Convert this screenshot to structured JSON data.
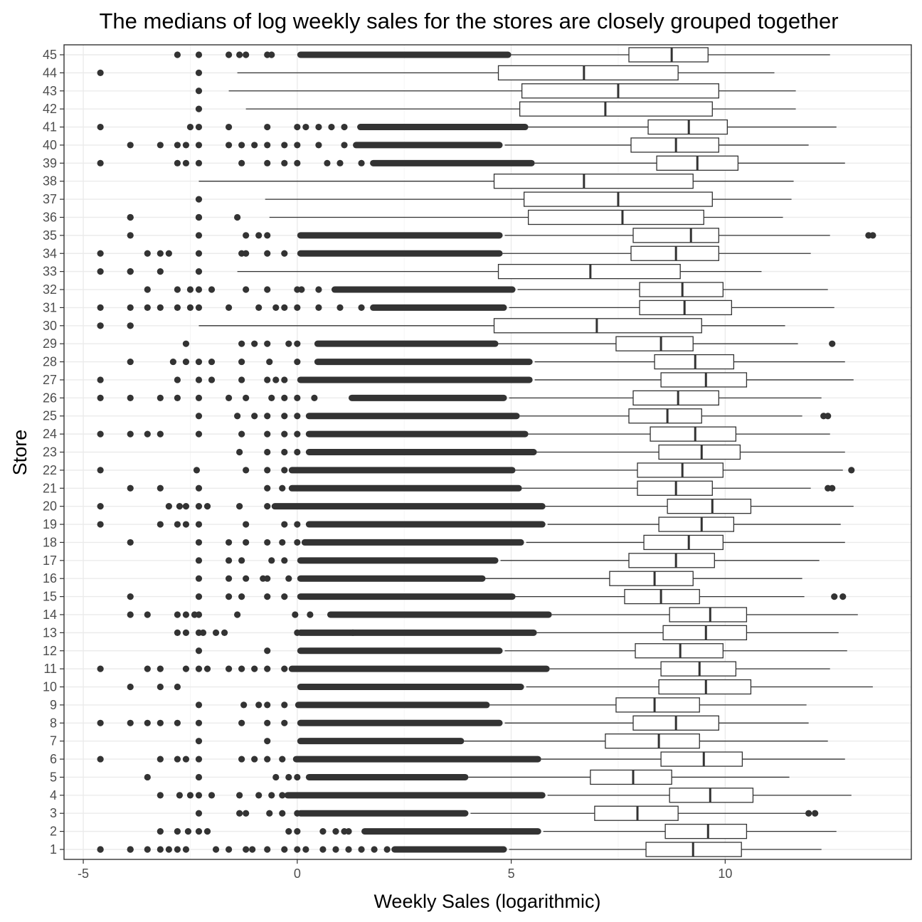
{
  "chart_data": {
    "type": "boxplot",
    "orientation": "horizontal",
    "title": "The medians of log weekly sales for the stores are closely grouped together",
    "xlabel": "Weekly Sales (logarithmic)",
    "ylabel": "Store",
    "xlim": [
      -5.45,
      14.35
    ],
    "xticks": [
      -5,
      0,
      5,
      10
    ],
    "xtick_labels": [
      "-5",
      "0",
      "5",
      "10"
    ],
    "grid": true,
    "colors": {
      "box_fill": "#ffffff",
      "box_stroke": "#333333",
      "outlier": "#333333",
      "grid": "#ebebeb",
      "tick_text": "#4d4d4d"
    },
    "stores": [
      {
        "store": "1",
        "lower": 4.95,
        "q1": 8.15,
        "median": 9.25,
        "q3": 10.38,
        "upper": 12.25,
        "outliers": [
          -4.6,
          -4.6,
          -3.9,
          -3.9,
          -3.5,
          -3.2,
          -3.0,
          -2.8,
          -2.6,
          -1.9,
          -1.6,
          -1.2,
          -1.05,
          -0.7,
          -0.3,
          0.0,
          0.2,
          0.6,
          0.9,
          1.2,
          1.5,
          1.8,
          2.1
        ],
        "outlier_band": [
          2.2,
          4.9
        ]
      },
      {
        "store": "2",
        "lower": 5.75,
        "q1": 8.6,
        "median": 9.6,
        "q3": 10.5,
        "upper": 12.6,
        "outliers": [
          -3.2,
          -2.8,
          -2.55,
          -2.3,
          -2.1,
          -0.2,
          0.0,
          0.6,
          0.9,
          1.1,
          1.2
        ],
        "outlier_band": [
          1.5,
          5.7
        ]
      },
      {
        "store": "3",
        "lower": 4.05,
        "q1": 6.95,
        "median": 7.95,
        "q3": 8.9,
        "upper": 11.9,
        "outliers": [
          -2.3,
          -1.35,
          -1.2,
          -0.65,
          -0.35,
          0.0,
          11.95,
          12.1
        ],
        "outlier_band": [
          0.0,
          4.0
        ]
      },
      {
        "store": "4",
        "lower": 5.85,
        "q1": 8.7,
        "median": 9.65,
        "q3": 10.65,
        "upper": 12.95,
        "outliers": [
          -3.2,
          -2.75,
          -2.5,
          -2.3,
          -2.0,
          -1.35,
          -0.9,
          -0.6,
          -0.35
        ],
        "outlier_band": [
          -0.3,
          5.8
        ]
      },
      {
        "store": "5",
        "lower": 4.0,
        "q1": 6.85,
        "median": 7.85,
        "q3": 8.75,
        "upper": 11.5,
        "outliers": [
          -3.5,
          -2.3,
          -0.5,
          -0.2,
          0.0
        ],
        "outlier_band": [
          0.2,
          4.0
        ]
      },
      {
        "store": "6",
        "lower": 5.7,
        "q1": 8.5,
        "median": 9.5,
        "q3": 10.4,
        "upper": 12.8,
        "outliers": [
          -4.6,
          -3.2,
          -2.8,
          -2.6,
          -2.3,
          -1.3,
          -1.0,
          -0.7,
          -0.35
        ],
        "outlier_band": [
          -0.1,
          5.7
        ]
      },
      {
        "store": "7",
        "lower": 3.9,
        "q1": 7.2,
        "median": 8.45,
        "q3": 9.4,
        "upper": 12.4,
        "outliers": [
          -2.3,
          -0.7
        ],
        "outlier_band": [
          0.0,
          3.9
        ]
      },
      {
        "store": "8",
        "lower": 4.85,
        "q1": 7.85,
        "median": 8.85,
        "q3": 9.85,
        "upper": 11.95,
        "outliers": [
          -4.6,
          -3.9,
          -3.5,
          -3.2,
          -2.8,
          -2.3,
          -1.3,
          -0.7,
          -0.3
        ],
        "outlier_band": [
          0.0,
          4.8
        ]
      },
      {
        "store": "9",
        "lower": 4.5,
        "q1": 7.45,
        "median": 8.35,
        "q3": 9.4,
        "upper": 11.9,
        "outliers": [
          -2.3,
          -1.25,
          -0.9,
          -0.7,
          -0.3
        ],
        "outlier_band": [
          -0.05,
          4.5
        ]
      },
      {
        "store": "10",
        "lower": 5.35,
        "q1": 8.45,
        "median": 9.55,
        "q3": 10.6,
        "upper": 13.45,
        "outliers": [
          -3.9,
          -3.2,
          -2.8
        ],
        "outlier_band": [
          0.0,
          5.3
        ]
      },
      {
        "store": "11",
        "lower": 5.9,
        "q1": 8.5,
        "median": 9.4,
        "q3": 10.25,
        "upper": 12.45,
        "outliers": [
          -4.6,
          -3.5,
          -3.2,
          -2.6,
          -2.3,
          -2.1,
          -1.6,
          -1.3,
          -1.0,
          -0.7,
          -0.3
        ],
        "outlier_band": [
          -0.2,
          5.9
        ]
      },
      {
        "store": "12",
        "lower": 4.85,
        "q1": 7.9,
        "median": 8.95,
        "q3": 9.95,
        "upper": 12.85,
        "outliers": [
          -2.3,
          -0.7
        ],
        "outlier_band": [
          0.0,
          4.8
        ]
      },
      {
        "store": "13",
        "lower": 5.6,
        "q1": 8.55,
        "median": 9.55,
        "q3": 10.5,
        "upper": 12.65,
        "outliers": [
          -2.8,
          -2.6,
          -2.3,
          -2.2,
          -1.9,
          -1.7,
          0.0,
          1.3
        ],
        "outlier_band": [
          0.0,
          5.6
        ]
      },
      {
        "store": "14",
        "lower": 5.95,
        "q1": 8.7,
        "median": 9.65,
        "q3": 10.5,
        "upper": 13.1,
        "outliers": [
          -3.9,
          -3.5,
          -2.8,
          -2.6,
          -2.4,
          -2.3,
          -1.4,
          -0.05,
          0.3
        ],
        "outlier_band": [
          0.7,
          5.95
        ]
      },
      {
        "store": "15",
        "lower": 5.1,
        "q1": 7.65,
        "median": 8.5,
        "q3": 9.4,
        "upper": 11.85,
        "outliers": [
          -3.9,
          -2.3,
          -1.6,
          -1.3,
          -0.7,
          -0.3,
          12.55,
          12.75
        ],
        "outlier_band": [
          0.0,
          5.1
        ]
      },
      {
        "store": "16",
        "lower": 4.4,
        "q1": 7.3,
        "median": 8.35,
        "q3": 9.25,
        "upper": 11.8,
        "outliers": [
          -2.3,
          -1.6,
          -1.2,
          -0.8,
          -0.7,
          -0.2
        ],
        "outlier_band": [
          0.0,
          4.4
        ]
      },
      {
        "store": "17",
        "lower": 4.75,
        "q1": 7.75,
        "median": 8.85,
        "q3": 9.75,
        "upper": 12.2,
        "outliers": [
          -2.3,
          -1.6,
          -1.3,
          -0.6,
          -0.3
        ],
        "outlier_band": [
          0.0,
          4.7
        ]
      },
      {
        "store": "18",
        "lower": 5.35,
        "q1": 8.1,
        "median": 9.15,
        "q3": 9.95,
        "upper": 12.8,
        "outliers": [
          -3.9,
          -2.3,
          -1.6,
          -1.2,
          -0.7,
          -0.35,
          0.0
        ],
        "outlier_band": [
          0.1,
          5.3
        ]
      },
      {
        "store": "19",
        "lower": 5.85,
        "q1": 8.45,
        "median": 9.45,
        "q3": 10.2,
        "upper": 12.7,
        "outliers": [
          -4.6,
          -3.2,
          -2.8,
          -2.6,
          -2.3,
          -1.2,
          -0.3,
          0.0
        ],
        "outlier_band": [
          0.2,
          5.8
        ]
      },
      {
        "store": "20",
        "lower": 5.8,
        "q1": 8.65,
        "median": 9.7,
        "q3": 10.6,
        "upper": 13.0,
        "outliers": [
          -4.6,
          -3.0,
          -2.75,
          -2.6,
          -2.3,
          -2.1,
          -1.35,
          -0.7
        ],
        "outlier_band": [
          -0.6,
          5.8
        ]
      },
      {
        "store": "21",
        "lower": 5.25,
        "q1": 7.95,
        "median": 8.85,
        "q3": 9.7,
        "upper": 12.0,
        "outliers": [
          -3.9,
          -3.2,
          -2.3,
          -0.7,
          -0.35,
          12.4,
          12.5
        ],
        "outlier_band": [
          -0.2,
          5.25
        ]
      },
      {
        "store": "22",
        "lower": 5.1,
        "q1": 7.95,
        "median": 9.0,
        "q3": 9.95,
        "upper": 12.75,
        "outliers": [
          -4.6,
          -2.35,
          -1.2,
          -0.7,
          -0.3,
          12.95
        ],
        "outlier_band": [
          -0.2,
          5.1
        ]
      },
      {
        "store": "23",
        "lower": 5.6,
        "q1": 8.45,
        "median": 9.45,
        "q3": 10.35,
        "upper": 12.8,
        "outliers": [
          -1.35,
          -0.7,
          -0.3,
          0.0
        ],
        "outlier_band": [
          0.2,
          5.6
        ]
      },
      {
        "store": "24",
        "lower": 5.4,
        "q1": 8.25,
        "median": 9.3,
        "q3": 10.25,
        "upper": 12.45,
        "outliers": [
          -4.6,
          -3.9,
          -3.5,
          -3.2,
          -2.3,
          -1.3,
          -0.7,
          -0.3,
          0.0
        ],
        "outlier_band": [
          0.2,
          5.4
        ]
      },
      {
        "store": "25",
        "lower": 5.2,
        "q1": 7.75,
        "median": 8.65,
        "q3": 9.45,
        "upper": 11.8,
        "outliers": [
          -2.3,
          -1.4,
          -1.0,
          -0.7,
          -0.3,
          0.0,
          12.3,
          12.4
        ],
        "outlier_band": [
          0.2,
          5.2
        ]
      },
      {
        "store": "26",
        "lower": 4.95,
        "q1": 7.85,
        "median": 8.9,
        "q3": 9.85,
        "upper": 12.25,
        "outliers": [
          -4.6,
          -3.9,
          -3.2,
          -2.8,
          -2.3,
          -1.6,
          -1.2,
          -0.6,
          -0.3,
          0.0,
          0.4
        ],
        "outlier_band": [
          1.2,
          4.9
        ]
      },
      {
        "store": "27",
        "lower": 5.55,
        "q1": 8.5,
        "median": 9.55,
        "q3": 10.5,
        "upper": 13.0,
        "outliers": [
          -4.6,
          -2.8,
          -2.3,
          -2.0,
          -1.3,
          -0.7,
          -0.5,
          -0.3
        ],
        "outlier_band": [
          0.0,
          5.5
        ]
      },
      {
        "store": "28",
        "lower": 5.55,
        "q1": 8.35,
        "median": 9.3,
        "q3": 10.2,
        "upper": 12.8,
        "outliers": [
          -3.9,
          -2.9,
          -2.6,
          -2.3,
          -2.0,
          -1.3,
          -0.65,
          0.0
        ],
        "outlier_band": [
          0.4,
          5.5
        ]
      },
      {
        "store": "29",
        "lower": 4.7,
        "q1": 7.45,
        "median": 8.5,
        "q3": 9.25,
        "upper": 11.7,
        "outliers": [
          -2.6,
          -1.3,
          -1.0,
          -0.7,
          -0.2,
          0.0,
          12.5
        ],
        "outlier_band": [
          0.4,
          4.7
        ]
      },
      {
        "store": "30",
        "lower": -2.3,
        "q1": 4.6,
        "median": 7.0,
        "q3": 9.45,
        "upper": 11.4,
        "outliers": [
          -4.6,
          -4.6,
          -3.9,
          -3.9
        ],
        "outlier_band": null
      },
      {
        "store": "31",
        "lower": 4.95,
        "q1": 8.0,
        "median": 9.05,
        "q3": 10.15,
        "upper": 12.55,
        "outliers": [
          -4.6,
          -3.9,
          -3.5,
          -3.2,
          -2.8,
          -2.5,
          -2.3,
          -1.6,
          -0.9,
          -0.5,
          -0.3,
          0.0,
          0.5,
          1.0,
          1.5
        ],
        "outlier_band": [
          1.7,
          4.9
        ]
      },
      {
        "store": "32",
        "lower": 5.15,
        "q1": 8.0,
        "median": 9.0,
        "q3": 9.95,
        "upper": 12.4,
        "outliers": [
          -3.5,
          -2.8,
          -2.5,
          -2.3,
          -2.0,
          -1.2,
          -0.7,
          0.0,
          0.1,
          0.5
        ],
        "outlier_band": [
          0.8,
          5.1
        ]
      },
      {
        "store": "33",
        "lower": -1.4,
        "q1": 4.7,
        "median": 6.85,
        "q3": 8.95,
        "upper": 10.85,
        "outliers": [
          -4.6,
          -3.9,
          -3.9,
          -3.2,
          -2.3
        ],
        "outlier_band": null
      },
      {
        "store": "34",
        "lower": 4.8,
        "q1": 7.8,
        "median": 8.85,
        "q3": 9.85,
        "upper": 12.0,
        "outliers": [
          -4.6,
          -3.5,
          -3.2,
          -3.0,
          -2.3,
          -1.3,
          -1.2,
          -0.7,
          -0.3
        ],
        "outlier_band": [
          0.0,
          4.8
        ]
      },
      {
        "store": "35",
        "lower": 4.85,
        "q1": 7.85,
        "median": 9.2,
        "q3": 9.85,
        "upper": 12.45,
        "outliers": [
          -3.9,
          -2.3,
          -1.2,
          -0.9,
          -0.7,
          13.35,
          13.45
        ],
        "outlier_band": [
          0.0,
          4.8
        ]
      },
      {
        "store": "36",
        "lower": -0.65,
        "q1": 5.4,
        "median": 7.6,
        "q3": 9.5,
        "upper": 11.35,
        "outliers": [
          -3.9,
          -3.9,
          -2.3,
          -2.3,
          -1.4
        ],
        "outlier_band": null
      },
      {
        "store": "37",
        "lower": -0.75,
        "q1": 5.3,
        "median": 7.5,
        "q3": 9.7,
        "upper": 11.55,
        "outliers": [
          -2.3
        ],
        "outlier_band": null
      },
      {
        "store": "38",
        "lower": -2.3,
        "q1": 4.6,
        "median": 6.7,
        "q3": 9.25,
        "upper": 11.6,
        "outliers": [],
        "outlier_band": null
      },
      {
        "store": "39",
        "lower": 5.55,
        "q1": 8.4,
        "median": 9.35,
        "q3": 10.3,
        "upper": 12.8,
        "outliers": [
          -4.6,
          -2.8,
          -2.6,
          -2.3,
          -1.3,
          -0.7,
          -0.3,
          0.0,
          0.7,
          1.0,
          1.5
        ],
        "outlier_band": [
          1.7,
          5.55
        ]
      },
      {
        "store": "40",
        "lower": 4.85,
        "q1": 7.8,
        "median": 8.85,
        "q3": 9.85,
        "upper": 11.95,
        "outliers": [
          -3.9,
          -3.2,
          -2.8,
          -2.6,
          -2.3,
          -1.6,
          -1.3,
          -1.0,
          -0.7,
          -0.3,
          0.0,
          0.5,
          1.1
        ],
        "outlier_band": [
          1.3,
          4.8
        ]
      },
      {
        "store": "41",
        "lower": 5.4,
        "q1": 8.2,
        "median": 9.15,
        "q3": 10.05,
        "upper": 12.6,
        "outliers": [
          -4.6,
          -2.5,
          -2.3,
          -1.6,
          -0.7,
          0.0,
          0.2,
          0.5,
          0.8,
          1.1
        ],
        "outlier_band": [
          1.4,
          5.4
        ]
      },
      {
        "store": "42",
        "lower": -1.2,
        "q1": 5.2,
        "median": 7.2,
        "q3": 9.7,
        "upper": 11.65,
        "outliers": [
          -2.3
        ],
        "outlier_band": null
      },
      {
        "store": "43",
        "lower": -1.6,
        "q1": 5.25,
        "median": 7.5,
        "q3": 9.85,
        "upper": 11.65,
        "outliers": [
          -2.3
        ],
        "outlier_band": null
      },
      {
        "store": "44",
        "lower": -1.4,
        "q1": 4.7,
        "median": 6.7,
        "q3": 8.9,
        "upper": 11.15,
        "outliers": [
          -4.6,
          -2.3
        ],
        "outlier_band": null
      },
      {
        "store": "45",
        "lower": 5.0,
        "q1": 7.75,
        "median": 8.75,
        "q3": 9.6,
        "upper": 12.45,
        "outliers": [
          -2.8,
          -2.3,
          -1.6,
          -1.35,
          -1.2,
          -0.7,
          -0.6
        ],
        "outlier_band": [
          0.0,
          5.0
        ]
      }
    ]
  }
}
